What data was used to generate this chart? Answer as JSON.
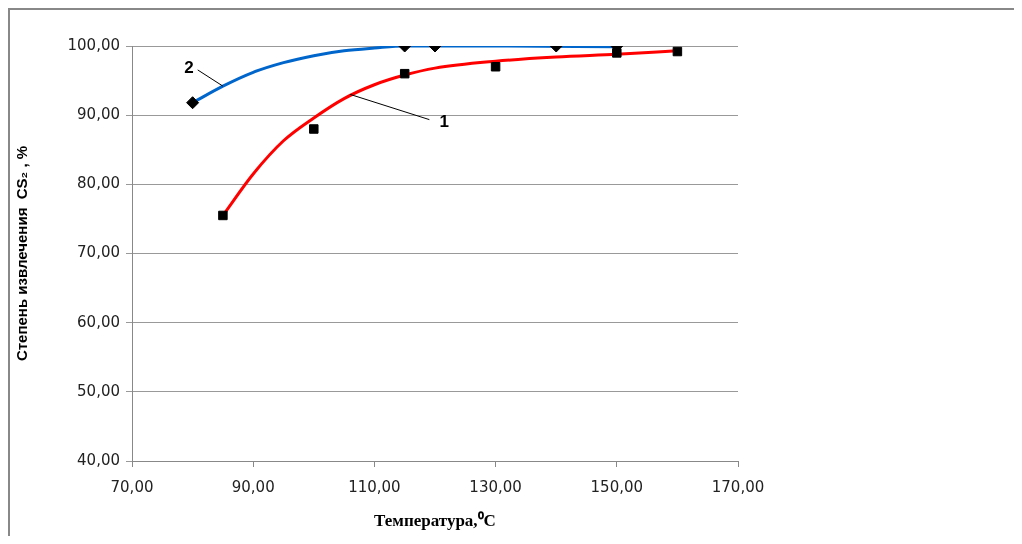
{
  "chart_data": {
    "type": "scatter",
    "xlabel": "Температура,⁰C",
    "ylabel": "Степень извлечения  CS₂ , %",
    "xlim": [
      70,
      170
    ],
    "xticks": [
      {
        "value": 70,
        "label": "70,00"
      },
      {
        "value": 90,
        "label": "90,00"
      },
      {
        "value": 110,
        "label": "110,00"
      },
      {
        "value": 130,
        "label": "130,00"
      },
      {
        "value": 150,
        "label": "150,00"
      },
      {
        "value": 170,
        "label": "170,00"
      }
    ],
    "ylim": [
      40,
      100
    ],
    "yticks": [
      {
        "value": 40,
        "label": "40,00"
      },
      {
        "value": 50,
        "label": "50,00"
      },
      {
        "value": 60,
        "label": "60,00"
      },
      {
        "value": 70,
        "label": "70,00"
      },
      {
        "value": 80,
        "label": "80,00"
      },
      {
        "value": 90,
        "label": "90,00"
      },
      {
        "value": 100,
        "label": "100,00"
      }
    ],
    "grid": "y",
    "legend": false,
    "series": [
      {
        "type": "line",
        "color": "#ff0000",
        "marker": "none",
        "x": [
          85,
          90,
          95,
          100,
          105,
          110,
          115,
          120,
          130,
          140,
          150,
          160
        ],
        "values": [
          75.5,
          81.5,
          86.3,
          89.6,
          92.4,
          94.4,
          95.8,
          96.8,
          97.8,
          98.4,
          98.8,
          99.3
        ]
      },
      {
        "type": "line",
        "color": "#0066cc",
        "marker": "none",
        "x": [
          80,
          85,
          90,
          95,
          100,
          105,
          110,
          115,
          130,
          150
        ],
        "values": [
          91.8,
          94.2,
          96.2,
          97.6,
          98.6,
          99.3,
          99.7,
          100,
          100,
          99.9
        ]
      },
      {
        "type": "scatter",
        "color": "#000000",
        "marker": "square",
        "x": [
          85,
          100,
          115,
          130,
          150,
          160
        ],
        "values": [
          75.5,
          88,
          96,
          97,
          99,
          99.2
        ]
      },
      {
        "type": "scatter",
        "color": "#000000",
        "marker": "diamond",
        "x": [
          80,
          115,
          120,
          140,
          150
        ],
        "values": [
          91.8,
          100,
          100,
          100,
          100
        ]
      }
    ],
    "annotations": [
      {
        "text": "1",
        "x": 106,
        "y": 93
      },
      {
        "text": "2",
        "x": 85,
        "y": 94.2
      }
    ]
  }
}
